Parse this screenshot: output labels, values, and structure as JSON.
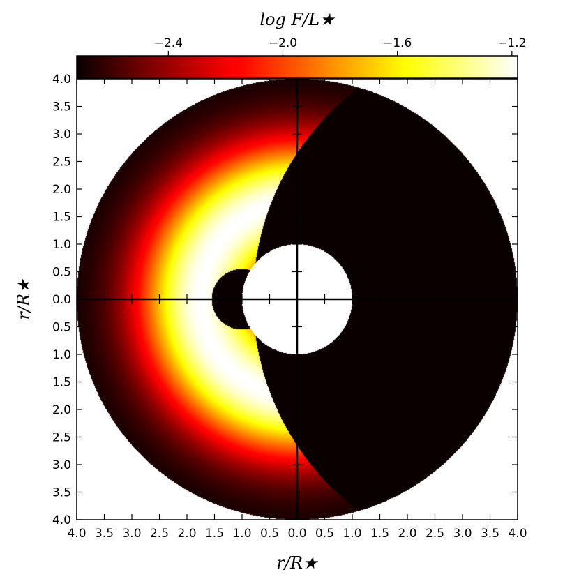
{
  "chart_data": {
    "type": "heatmap",
    "xlabel": "r/R★",
    "ylabel": "r/R★",
    "colorbar": {
      "label": "log F/L★",
      "cmap": "hot",
      "vmin": -2.72,
      "vmax": -1.18,
      "ticks": [
        -2.4,
        -2.0,
        -1.6,
        -1.2
      ],
      "tick_labels": [
        "−2.4",
        "−2.0",
        "−1.6",
        "−1.2"
      ],
      "placement": "top"
    },
    "x_ticks": [
      -4.0,
      -3.5,
      -3.0,
      -2.5,
      -2.0,
      -1.5,
      -1.0,
      -0.5,
      0.0,
      0.5,
      1.0,
      1.5,
      2.0,
      2.5,
      3.0,
      3.5,
      4.0
    ],
    "x_tick_labels": [
      "4.0",
      "3.5",
      "3.0",
      "2.5",
      "2.0",
      "1.5",
      "1.0",
      "0.5",
      "0.0",
      "0.5",
      "1.0",
      "1.5",
      "2.0",
      "2.5",
      "3.0",
      "3.5",
      "4.0"
    ],
    "y_ticks": [
      4.0,
      3.5,
      3.0,
      2.5,
      2.0,
      1.5,
      1.0,
      0.5,
      0.0,
      -0.5,
      -1.0,
      -1.5,
      -2.0,
      -2.5,
      -3.0,
      -3.5,
      -4.0
    ],
    "y_tick_labels": [
      "4.0",
      "3.5",
      "3.0",
      "2.5",
      "2.0",
      "1.5",
      "1.0",
      "0.5",
      "0.0",
      "0.5",
      "1.0",
      "1.5",
      "2.0",
      "2.5",
      "3.0",
      "3.5",
      "4.0"
    ],
    "xlim": [
      -4.0,
      4.0
    ],
    "ylim": [
      -4.0,
      4.0
    ],
    "grid": false,
    "regions": {
      "outer_radius": 4.0,
      "star_radius": 1.0,
      "shadow_circle": {
        "center_x": 4.0,
        "radius": 4.8
      },
      "small_disk": {
        "center_x": -1.0,
        "radius": 0.55
      },
      "peak_radius": 1.75,
      "shadow_value": -2.72
    },
    "colors": {
      "shadow": "#0b0000",
      "star": "#ffffff",
      "axes": "#000000"
    }
  }
}
